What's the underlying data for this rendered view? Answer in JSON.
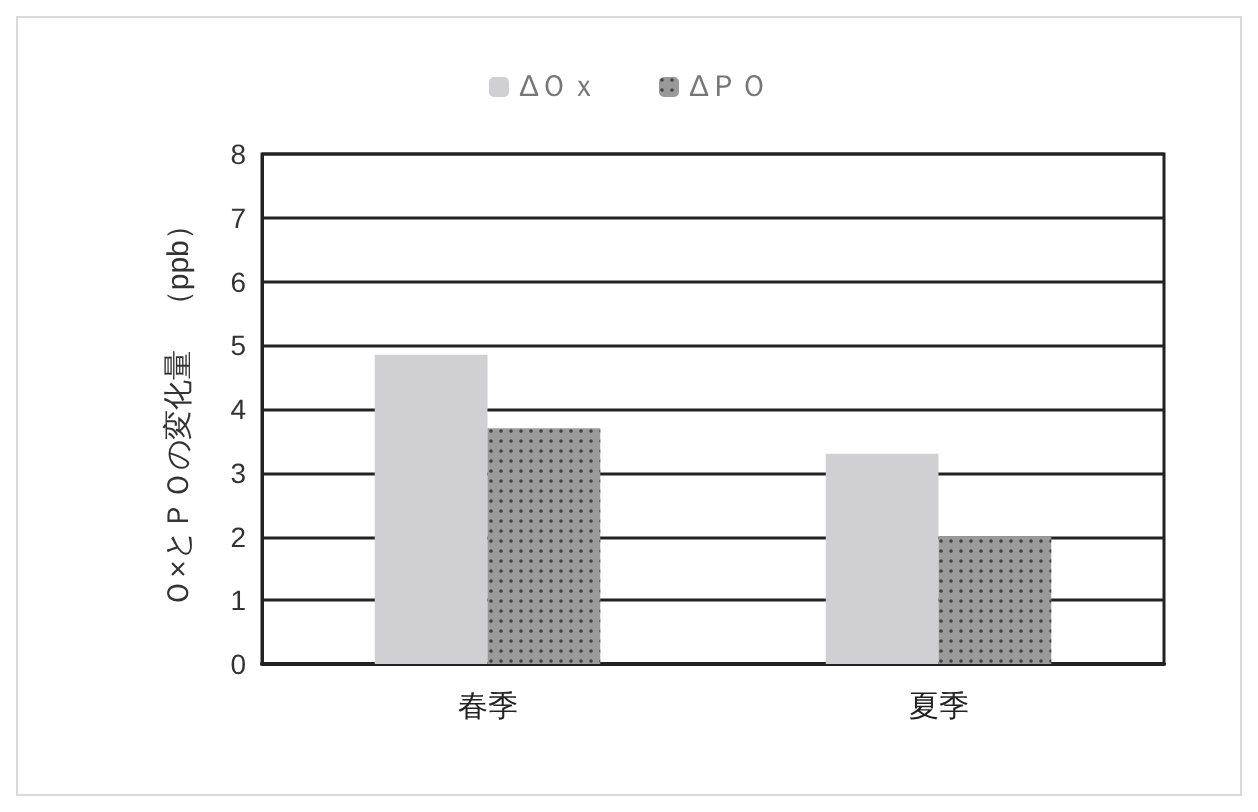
{
  "chart_data": {
    "type": "bar",
    "ylabel": "Ｏ×とＰＯの変化量　（ppb）",
    "categories": [
      "春季",
      "夏季"
    ],
    "series": [
      {
        "name": "ΔＯｘ",
        "color": "#d0d0d2",
        "values": [
          4.85,
          3.3
        ]
      },
      {
        "name": "ΔＰＯ",
        "color": "#9a9a9a",
        "values": [
          3.7,
          2.0
        ]
      }
    ],
    "ylim": [
      0,
      8
    ],
    "yticks": [
      0,
      1,
      2,
      3,
      4,
      5,
      6,
      7,
      8
    ],
    "grid": "y",
    "legend": "top"
  }
}
